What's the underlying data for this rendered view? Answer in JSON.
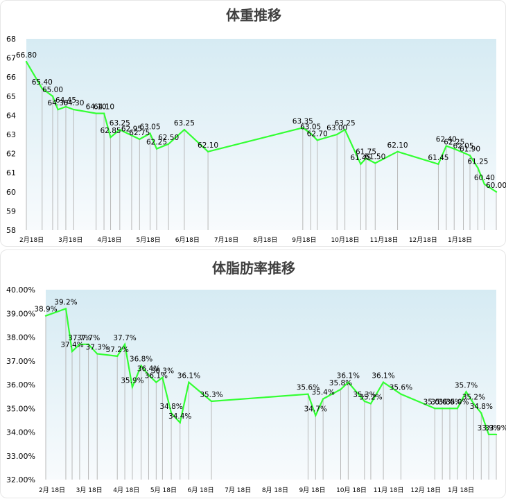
{
  "chart_data": [
    {
      "type": "line",
      "title": "体重推移",
      "xlabel": "",
      "ylabel": "",
      "ylim": [
        58,
        68
      ],
      "yticks": [
        "68",
        "67",
        "66",
        "65",
        "64",
        "63",
        "62",
        "61",
        "60",
        "59",
        "58"
      ],
      "xticks": [
        "2月18日",
        "3月18日",
        "4月18日",
        "5月18日",
        "6月18日",
        "7月18日",
        "8月18日",
        "9月18日",
        "10月18日",
        "11月18日",
        "12月18日",
        "1月18日"
      ],
      "grid": false,
      "line_color": "#33ff33",
      "series": [
        {
          "points": [
            {
              "x": "2月18日",
              "y": 66.8,
              "label": "66.80"
            },
            {
              "x": "3月2日",
              "y": 65.4,
              "label": "65.40"
            },
            {
              "x": "3月10日",
              "y": 65.0,
              "label": "65.00"
            },
            {
              "x": "3月14日",
              "y": 64.3,
              "label": "64.30"
            },
            {
              "x": "3月20日",
              "y": 64.45,
              "label": "64.45"
            },
            {
              "x": "3月26日",
              "y": 64.3,
              "label": "64.30"
            },
            {
              "x": "4月12日",
              "y": 64.1,
              "label": "64.10"
            },
            {
              "x": "4月18日",
              "y": 64.1,
              "label": "64.10"
            },
            {
              "x": "4月23日",
              "y": 62.85,
              "label": "62.85"
            },
            {
              "x": "4月30日",
              "y": 63.25,
              "label": "63.25"
            },
            {
              "x": "5月9日",
              "y": 62.95,
              "label": "62.95"
            },
            {
              "x": "5月15日",
              "y": 62.75,
              "label": "62.75"
            },
            {
              "x": "5月23日",
              "y": 63.05,
              "label": "63.05"
            },
            {
              "x": "5月28日",
              "y": 62.25,
              "label": "62.25"
            },
            {
              "x": "6月6日",
              "y": 62.5,
              "label": "62.50"
            },
            {
              "x": "6月18日",
              "y": 63.25,
              "label": "63.25"
            },
            {
              "x": "7月6日",
              "y": 62.1,
              "label": "62.10"
            },
            {
              "x": "9月16日",
              "y": 63.35,
              "label": "63.35"
            },
            {
              "x": "9月22日",
              "y": 63.05,
              "label": "63.05"
            },
            {
              "x": "9月27日",
              "y": 62.7,
              "label": "62.70"
            },
            {
              "x": "10月12日",
              "y": 63.0,
              "label": "63.00"
            },
            {
              "x": "10月18日",
              "y": 63.25,
              "label": "63.25"
            },
            {
              "x": "10月30日",
              "y": 61.45,
              "label": "61.45"
            },
            {
              "x": "11月3日",
              "y": 61.75,
              "label": "61.75"
            },
            {
              "x": "11月10日",
              "y": 61.5,
              "label": "61.50"
            },
            {
              "x": "11月27日",
              "y": 62.1,
              "label": "62.10"
            },
            {
              "x": "12月28日",
              "y": 61.45,
              "label": "61.45"
            },
            {
              "x": "1月3日",
              "y": 62.4,
              "label": "62.40"
            },
            {
              "x": "1月9日",
              "y": 62.25,
              "label": "62.25"
            },
            {
              "x": "1月16日",
              "y": 62.05,
              "label": "62.05"
            },
            {
              "x": "1月21日",
              "y": 61.9,
              "label": "61.90"
            },
            {
              "x": "1月27日",
              "y": 61.25,
              "label": "61.25"
            },
            {
              "x": "2月1日",
              "y": 60.4,
              "label": "60.40"
            },
            {
              "x": "2月10日",
              "y": 60.0,
              "label": "60.00"
            }
          ]
        }
      ]
    },
    {
      "type": "line",
      "title": "体脂肪率推移",
      "xlabel": "",
      "ylabel": "",
      "ylim": [
        32,
        40
      ],
      "yticks": [
        "40.00%",
        "39.00%",
        "38.00%",
        "37.00%",
        "36.00%",
        "35.00%",
        "34.00%",
        "33.00%",
        "32.00%"
      ],
      "xticks": [
        "2月 18日",
        "3月 18日",
        "4月 18日",
        "5月 18日",
        "6月 18日",
        "7月 18日",
        "8月 18日",
        "9月 18日",
        "10月 18日",
        "11月 18日",
        "12月 18日",
        "1月 18日"
      ],
      "grid": false,
      "line_color": "#33ff33",
      "series": [
        {
          "points": [
            {
              "x": "2月18日",
              "y": 38.9,
              "label": "38.9%"
            },
            {
              "x": "3月6日",
              "y": 39.2,
              "label": "39.2%"
            },
            {
              "x": "3月11日",
              "y": 37.4,
              "label": "37.4%"
            },
            {
              "x": "3月17日",
              "y": 37.7,
              "label": "37.7%"
            },
            {
              "x": "3月24日",
              "y": 37.7,
              "label": "37.7%"
            },
            {
              "x": "3月31日",
              "y": 37.3,
              "label": "37.3%"
            },
            {
              "x": "4月16日",
              "y": 37.2,
              "label": "37.2%"
            },
            {
              "x": "4月22日",
              "y": 37.7,
              "label": "37.7%"
            },
            {
              "x": "4月28日",
              "y": 35.9,
              "label": "35.9%"
            },
            {
              "x": "5月5日",
              "y": 36.8,
              "label": "36.8%"
            },
            {
              "x": "5月11日",
              "y": 36.4,
              "label": "36.4%"
            },
            {
              "x": "5月17日",
              "y": 36.1,
              "label": "36.1%"
            },
            {
              "x": "5月22日",
              "y": 36.3,
              "label": "36.3%"
            },
            {
              "x": "5月29日",
              "y": 34.8,
              "label": "34.8%"
            },
            {
              "x": "6月5日",
              "y": 34.4,
              "label": "34.4%"
            },
            {
              "x": "6月12日",
              "y": 36.1,
              "label": "36.1%"
            },
            {
              "x": "6月30日",
              "y": 35.3,
              "label": "35.3%"
            },
            {
              "x": "9月15日",
              "y": 35.6,
              "label": "35.6%"
            },
            {
              "x": "9月21日",
              "y": 34.7,
              "label": "34.7%"
            },
            {
              "x": "9月27日",
              "y": 35.4,
              "label": "35.4%"
            },
            {
              "x": "10月11日",
              "y": 35.8,
              "label": "35.8%"
            },
            {
              "x": "10月17日",
              "y": 36.1,
              "label": "36.1%"
            },
            {
              "x": "10月30日",
              "y": 35.3,
              "label": "35.3%"
            },
            {
              "x": "11月4日",
              "y": 35.2,
              "label": "35.2%"
            },
            {
              "x": "11月14日",
              "y": 36.1,
              "label": "36.1%"
            },
            {
              "x": "11月28日",
              "y": 35.6,
              "label": "35.6%"
            },
            {
              "x": "12月25日",
              "y": 35.0,
              "label": "35.0%"
            },
            {
              "x": "12月31日",
              "y": 35.0,
              "label": "35.0%"
            },
            {
              "x": "1月6日",
              "y": 35.0,
              "label": "35.0%"
            },
            {
              "x": "1月12日",
              "y": 35.0,
              "label": "35.0%"
            },
            {
              "x": "1月19日",
              "y": 35.7,
              "label": "35.7%"
            },
            {
              "x": "1月25日",
              "y": 35.2,
              "label": "35.2%"
            },
            {
              "x": "1月31日",
              "y": 34.8,
              "label": "34.8%"
            },
            {
              "x": "2月6日",
              "y": 33.9,
              "label": "33.9%"
            },
            {
              "x": "2月12日",
              "y": 33.9,
              "label": "33.9%"
            }
          ]
        }
      ]
    }
  ]
}
